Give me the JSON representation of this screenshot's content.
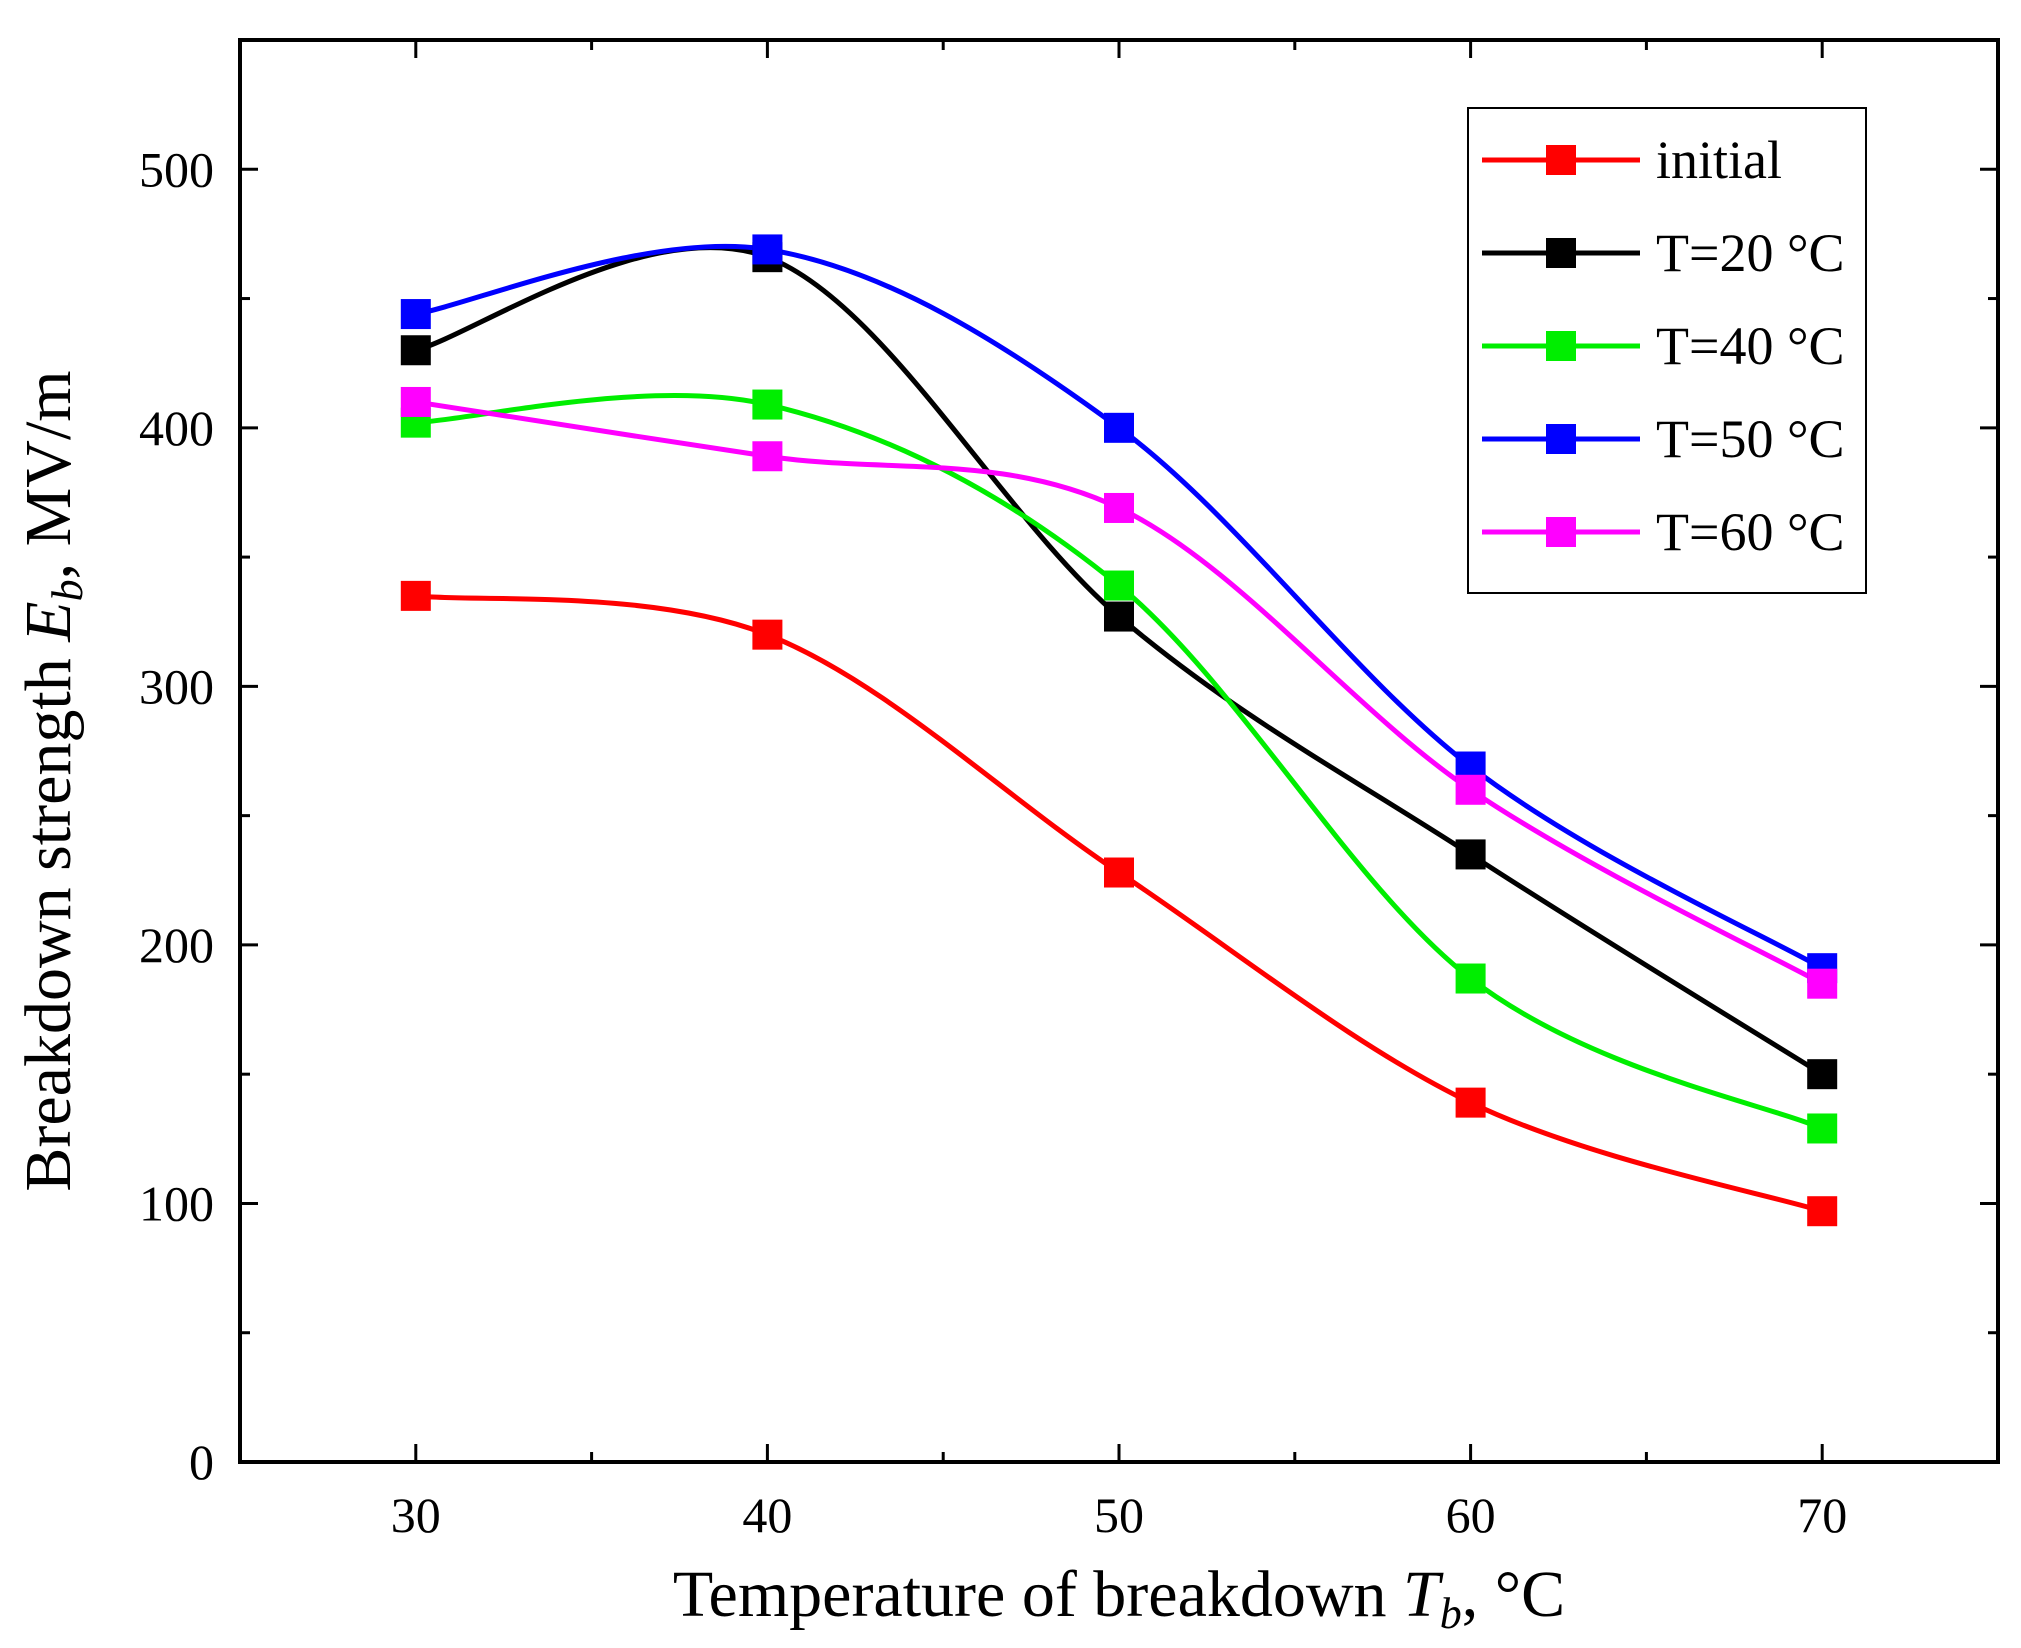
{
  "chart_data": {
    "type": "line",
    "x": [
      30,
      40,
      50,
      60,
      70
    ],
    "xlim": [
      25,
      75
    ],
    "ylim": [
      0,
      550
    ],
    "xticks": [
      30,
      40,
      50,
      60,
      70
    ],
    "yticks": [
      0,
      100,
      200,
      300,
      400,
      500
    ],
    "xlabel": {
      "main": "Temperature of breakdown ",
      "var": "T",
      "sub": "b",
      "unit": ", °C"
    },
    "ylabel": {
      "main": "Breakdown strength ",
      "var": "E",
      "sub": "b",
      "unit": ", MV/m"
    },
    "grid": false,
    "legend_position": "top-right",
    "series": [
      {
        "name": "initial",
        "color": "#ff0000",
        "values": [
          335,
          320,
          228,
          139,
          97
        ]
      },
      {
        "name": "T=20 °C",
        "color": "#000000",
        "values": [
          430,
          466,
          327,
          235,
          150
        ]
      },
      {
        "name": "T=40 °C",
        "color": "#00ee00",
        "values": [
          402,
          409,
          339,
          187,
          129
        ]
      },
      {
        "name": "T=50 °C",
        "color": "#0000ff",
        "values": [
          444,
          469,
          400,
          269,
          191
        ]
      },
      {
        "name": "T=60 °C",
        "color": "#ff00ff",
        "values": [
          410,
          389,
          369,
          260,
          185
        ]
      }
    ]
  }
}
